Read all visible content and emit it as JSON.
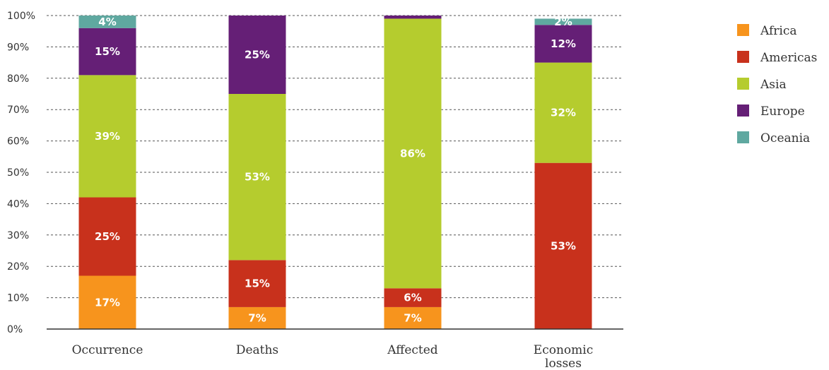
{
  "chart_data": {
    "type": "bar",
    "stacked": true,
    "categories": [
      "Occurrence",
      "Deaths",
      "Affected",
      "Economic losses"
    ],
    "ylim": [
      0,
      100
    ],
    "yticks": [
      "0%",
      "10%",
      "20%",
      "30%",
      "40%",
      "50%",
      "60%",
      "70%",
      "80%",
      "90%",
      "100%"
    ],
    "grid": true,
    "legend_position": "right",
    "series": [
      {
        "name": "Africa",
        "color": "#F7941D",
        "values": [
          17,
          7,
          7,
          0
        ],
        "labels": [
          "17%",
          "7%",
          "7%",
          ""
        ]
      },
      {
        "name": "Americas",
        "color": "#C8311C",
        "values": [
          25,
          15,
          6,
          53
        ],
        "labels": [
          "25%",
          "15%",
          "6%",
          "53%"
        ]
      },
      {
        "name": "Asia",
        "color": "#B5CC2E",
        "values": [
          39,
          53,
          86,
          32
        ],
        "labels": [
          "39%",
          "53%",
          "86%",
          "32%"
        ]
      },
      {
        "name": "Europe",
        "color": "#651F76",
        "values": [
          15,
          25,
          1,
          12
        ],
        "labels": [
          "15%",
          "25%",
          "",
          "12%"
        ]
      },
      {
        "name": "Oceania",
        "color": "#5FA8A0",
        "values": [
          4,
          0,
          0,
          2
        ],
        "labels": [
          "4%",
          "",
          "",
          "2%"
        ]
      }
    ]
  }
}
